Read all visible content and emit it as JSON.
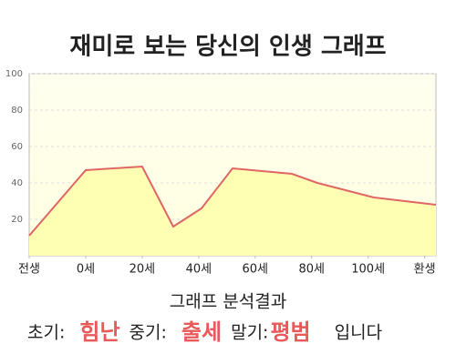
{
  "chart_data": {
    "type": "area",
    "title": "재미로 보는 당신의 인생 그래프",
    "x": [
      -20,
      0,
      20,
      31,
      41,
      52,
      73,
      82,
      102,
      124
    ],
    "values": [
      11,
      47,
      49,
      16,
      26,
      48,
      45,
      40,
      32,
      28
    ],
    "color": "#e06666",
    "fill": "#ffffb3",
    "xlim": [
      -20,
      124
    ],
    "ylim": [
      0,
      100
    ],
    "xticks": [
      {
        "value": -20,
        "label": "전생"
      },
      {
        "value": 0,
        "label": "0세"
      },
      {
        "value": 20,
        "label": "20세"
      },
      {
        "value": 40,
        "label": "40세"
      },
      {
        "value": 60,
        "label": "60세"
      },
      {
        "value": 80,
        "label": "80세"
      },
      {
        "value": 100,
        "label": "100세"
      },
      {
        "value": 120,
        "label": "환생"
      }
    ],
    "yticks": [
      20,
      40,
      60,
      80,
      100
    ],
    "grid": true,
    "analysis": {
      "title": "그래프 분석결과",
      "items": [
        {
          "label": "초기:",
          "value": "힘난"
        },
        {
          "label": "중기:",
          "value": "출세"
        },
        {
          "label": "말기:",
          "value": "평범"
        }
      ],
      "suffix": "입니다"
    }
  }
}
